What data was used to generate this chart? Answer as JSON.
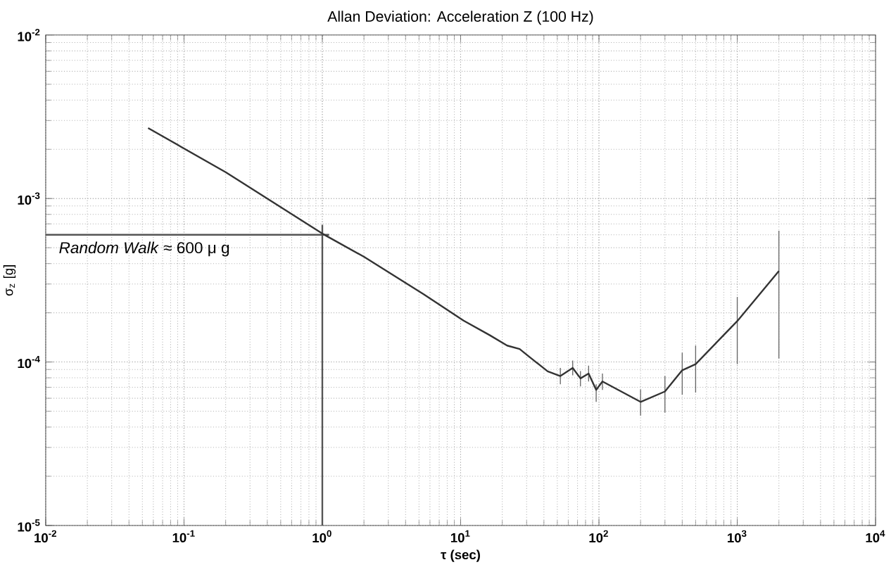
{
  "chart_data": {
    "type": "line",
    "title": "Allan Deviation: Acceleration Z (100 Hz)",
    "xlabel": "τ (sec)",
    "ylabel": "σ$_{z}$ [g]",
    "log": "xy",
    "grid": true,
    "color": "#333333",
    "x": [
      0.055,
      0.2,
      1,
      2,
      5.4,
      10.5,
      16.2,
      21.7,
      26.7,
      32.5,
      42.6,
      52.6,
      64.6,
      73.5,
      84.2,
      95.5,
      106,
      200,
      300,
      400,
      500,
      1000,
      2000
    ],
    "values": [
      0.0027,
      0.00145,
      0.00061,
      0.00044,
      0.00026,
      0.000179,
      0.000146,
      0.000126,
      0.00012,
      0.000105,
      8.77e-05,
      8.2e-05,
      9.2e-05,
      7.94e-05,
      8.5e-05,
      6.75e-05,
      7.6e-05,
      5.7e-05,
      6.6e-05,
      8.9e-05,
      9.7e-05,
      0.000178,
      0.00036
    ],
    "errors": [
      null,
      null,
      null,
      null,
      null,
      null,
      null,
      null,
      null,
      null,
      null,
      [
        7.3e-05,
        9.2e-05
      ],
      [
        8.3e-05,
        0.000102
      ],
      [
        7.1e-05,
        8.8e-05
      ],
      [
        7.6e-05,
        9.5e-05
      ],
      [
        5.7e-05,
        7.3e-05
      ],
      [
        6.75e-05,
        8.5e-05
      ],
      [
        4.7e-05,
        6.8e-05
      ],
      [
        4.9e-05,
        8.2e-05
      ],
      [
        6.3e-05,
        0.000114
      ],
      [
        6.5e-05,
        0.000126
      ],
      [
        9.7e-05,
        0.00025
      ],
      [
        0.000105,
        0.000635
      ]
    ],
    "xlim": [
      0.01,
      10000
    ],
    "ylim": [
      1e-05,
      0.01
    ],
    "xticks": [
      {
        "value": 0.01,
        "label": "10$^{-2}$"
      },
      {
        "value": 0.1,
        "label": "10$^{-1}$"
      },
      {
        "value": 1,
        "label": "10$^{0}$"
      },
      {
        "value": 10,
        "label": "10$^{1}$"
      },
      {
        "value": 100,
        "label": "10$^{2}$"
      },
      {
        "value": 1000,
        "label": "10$^{3}$"
      },
      {
        "value": 10000,
        "label": "10$^{4}$"
      }
    ],
    "yticks": [
      {
        "value": 1e-05,
        "label": "10$^{-5}$"
      },
      {
        "value": 0.0001,
        "label": "10$^{-4}$"
      },
      {
        "value": 0.001,
        "label": "10$^{-3}$"
      },
      {
        "value": 0.01,
        "label": "10$^{-2}$"
      }
    ],
    "ref_lines": [
      {
        "axis": "y",
        "value": 0.0006,
        "label": "*Random Walk* ≈ 600 μ g",
        "color": "#555555"
      },
      {
        "axis": "x",
        "value": 1,
        "color": "#555555"
      }
    ]
  }
}
